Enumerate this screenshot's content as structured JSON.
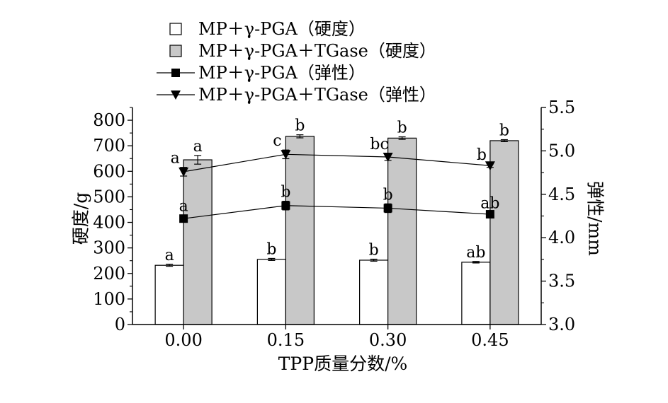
{
  "chart_data": {
    "type": "bar",
    "xlabel": "TPP质量分数/%",
    "ylabel": "硬度/g",
    "y2label": "弹性/mm",
    "categories": [
      "0.00",
      "0.15",
      "0.30",
      "0.45"
    ],
    "ylim": [
      0,
      850
    ],
    "yticks": [
      0,
      100,
      200,
      300,
      400,
      500,
      600,
      700,
      800
    ],
    "y2lim": [
      3.0,
      5.5
    ],
    "y2ticks": [
      "3.0",
      "3.5",
      "4.0",
      "4.5",
      "5.0",
      "5.5"
    ],
    "bar_series": [
      {
        "name": "MP＋γ-PGA（硬度）",
        "values": [
          232,
          255,
          252,
          244
        ],
        "errors": [
          4,
          4,
          4,
          3
        ],
        "labels": [
          "a",
          "b",
          "b",
          "ab"
        ],
        "fill": "#ffffff"
      },
      {
        "name": "MP＋γ-PGA＋TGase（硬度）",
        "values": [
          645,
          737,
          730,
          720
        ],
        "errors": [
          17,
          6,
          5,
          4
        ],
        "labels": [
          "a",
          "b",
          "b",
          "b"
        ],
        "fill": "#c8c8c8"
      }
    ],
    "line_series": [
      {
        "name": "MP＋γ-PGA（弹性）",
        "values": [
          4.22,
          4.37,
          4.34,
          4.27
        ],
        "errors": [
          0.04,
          0.05,
          0.05,
          0.02
        ],
        "labels": [
          "a",
          "b",
          "b",
          "ab"
        ],
        "marker": "square"
      },
      {
        "name": "MP＋γ-PGA＋TGase（弹性）",
        "values": [
          4.76,
          4.96,
          4.93,
          4.83
        ],
        "errors": [
          0.05,
          0.05,
          0.04,
          0.02
        ],
        "labels": [
          "a",
          "c",
          "bc",
          "b"
        ],
        "marker": "triangle-down"
      }
    ]
  }
}
